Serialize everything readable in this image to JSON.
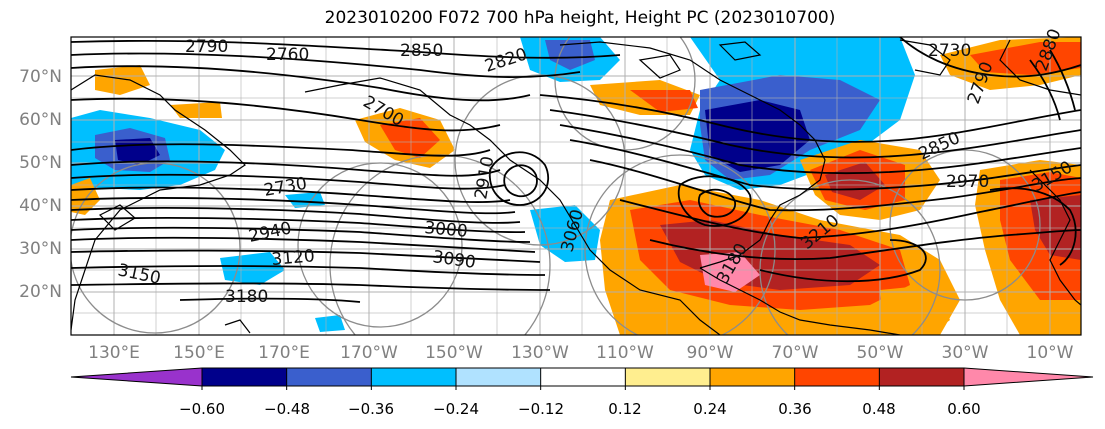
{
  "title": "2023010200 F072 700 hPa height, Height PC (2023010700)",
  "lat_labels": [
    "70°N",
    "60°N",
    "50°N",
    "40°N",
    "30°N",
    "20°N"
  ],
  "lon_labels": [
    "130°E",
    "150°E",
    "170°E",
    "170°W",
    "150°W",
    "130°W",
    "110°W",
    "90°W",
    "70°W",
    "50°W",
    "30°W",
    "10°W"
  ],
  "colorbar": {
    "ticks": [
      "−0.60",
      "−0.48",
      "−0.36",
      "−0.24",
      "−0.12",
      "0.12",
      "0.24",
      "0.36",
      "0.48",
      "0.60"
    ],
    "colors": [
      "#9932cc",
      "#00008b",
      "#3a5fcd",
      "#00bfff",
      "#b0e2ff",
      "#ffffff",
      "#ffee8f",
      "#ffa500",
      "#ff4500",
      "#b22222",
      "#ff88aa"
    ]
  },
  "contour_labels": [
    "2790",
    "2760",
    "2850",
    "2820",
    "2730",
    "2700",
    "2880",
    "2790",
    "2850",
    "2970",
    "3150",
    "2730",
    "2940",
    "3000",
    "3090",
    "3120",
    "3150",
    "3180",
    "3210",
    "3180",
    "2910",
    "3060"
  ]
}
